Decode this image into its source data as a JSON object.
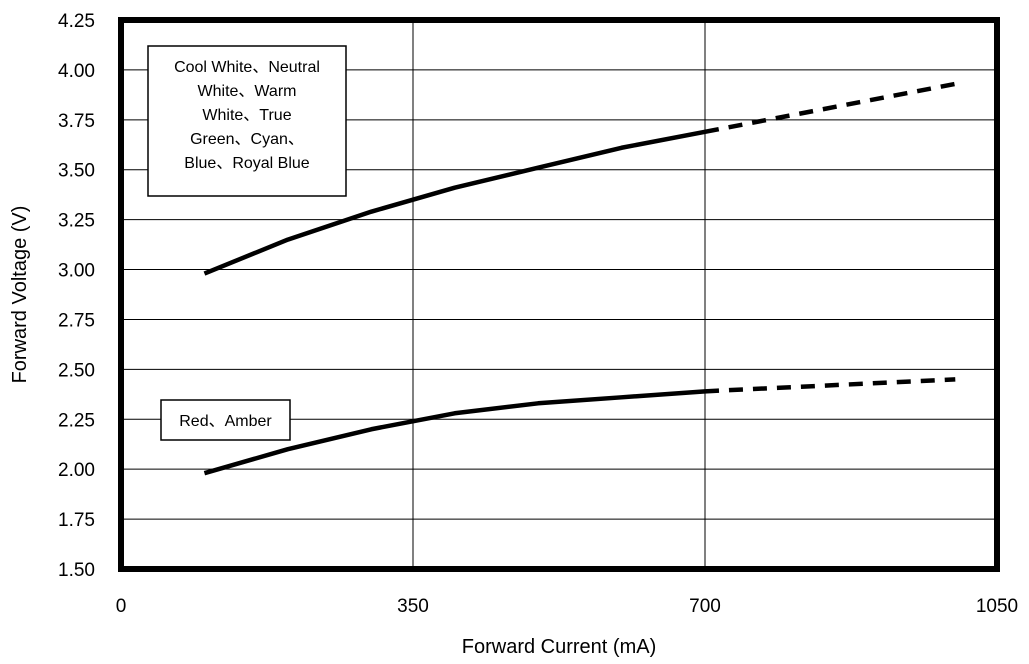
{
  "chart_data": {
    "type": "line",
    "xlabel": "Forward Current (mA)",
    "ylabel": "Forward Voltage (V)",
    "xlim": [
      0,
      1050
    ],
    "ylim": [
      1.5,
      4.25
    ],
    "x_ticks": [
      "0",
      "350",
      "700",
      "1050"
    ],
    "y_ticks": [
      "1.50",
      "1.75",
      "2.00",
      "2.25",
      "2.50",
      "2.75",
      "3.00",
      "3.25",
      "3.50",
      "3.75",
      "4.00",
      "4.25"
    ],
    "x_tick_values": [
      0,
      350,
      700,
      1050
    ],
    "y_tick_values": [
      1.5,
      1.75,
      2.0,
      2.25,
      2.5,
      2.75,
      3.0,
      3.25,
      3.5,
      3.75,
      4.0,
      4.25
    ],
    "grid": true,
    "series": [
      {
        "label_lines": [
          "Cool White、Neutral",
          "White、Warm",
          "White、True",
          "Green、Cyan、",
          "Blue、Royal Blue"
        ],
        "solid": {
          "x": [
            100,
            200,
            300,
            400,
            500,
            600,
            700
          ],
          "y": [
            2.98,
            3.15,
            3.29,
            3.41,
            3.51,
            3.61,
            3.69
          ]
        },
        "dashed": {
          "x": [
            700,
            1000
          ],
          "y": [
            3.69,
            3.93
          ]
        }
      },
      {
        "label_lines": [
          "Red、Amber"
        ],
        "solid": {
          "x": [
            100,
            200,
            300,
            400,
            500,
            600,
            700
          ],
          "y": [
            1.98,
            2.1,
            2.2,
            2.28,
            2.33,
            2.36,
            2.39
          ]
        },
        "dashed": {
          "x": [
            700,
            1000
          ],
          "y": [
            2.39,
            2.45
          ]
        }
      }
    ]
  }
}
